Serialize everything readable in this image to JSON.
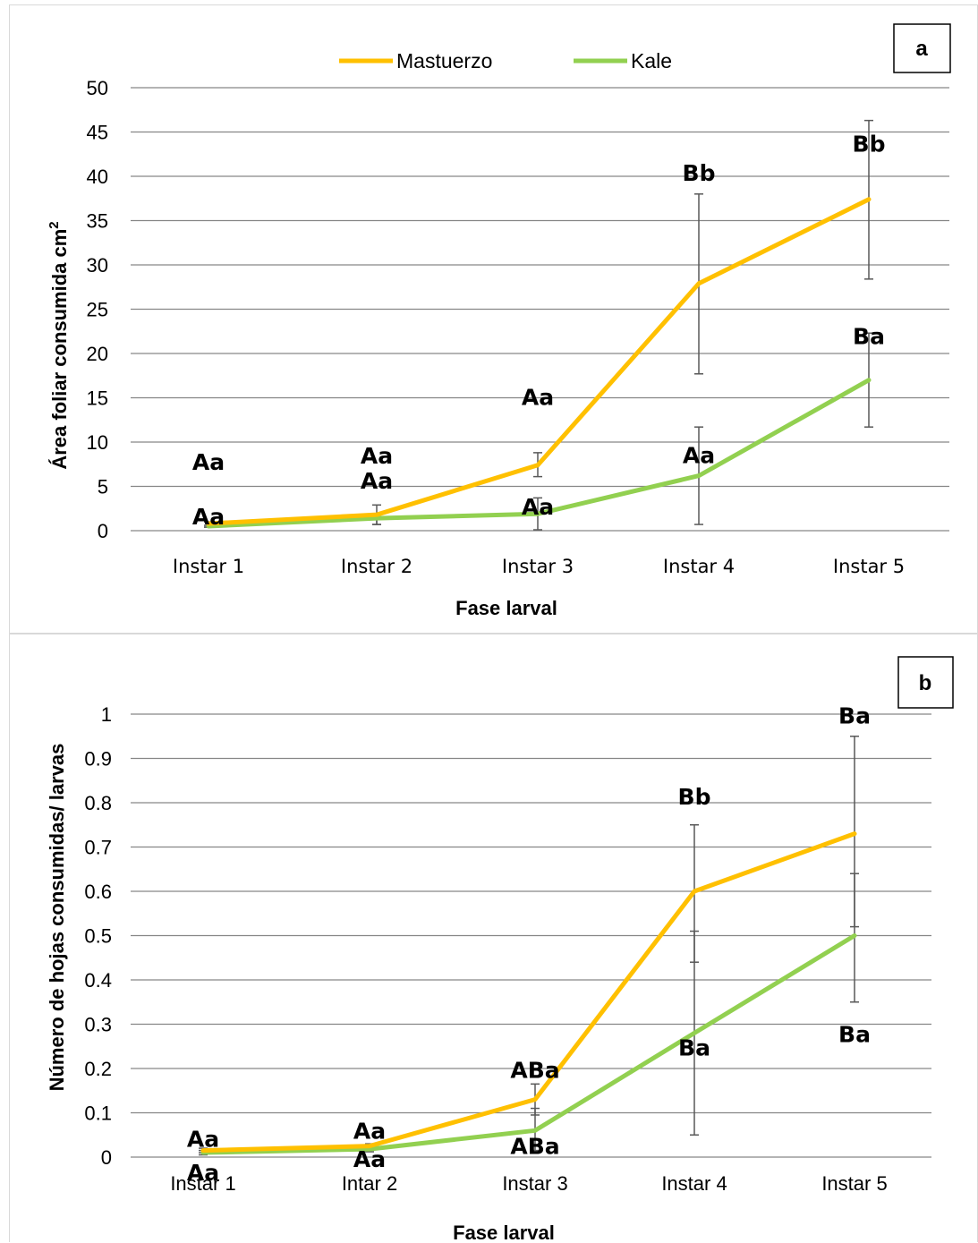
{
  "colors": {
    "mastuerzo": "#FFC000",
    "kale": "#92D050",
    "grid": "#868686",
    "errorbar": "#595959"
  },
  "chart_data": [
    {
      "type": "line",
      "panel_label": "a",
      "categories": [
        "Instar 1",
        "Instar 2",
        "Instar 3",
        "Instar 4",
        "Instar 5"
      ],
      "xlabel": "Fase larval",
      "ylabel": "Área foliar consumida cm",
      "ylabel_sup": "2",
      "ylim": [
        0,
        50
      ],
      "yticks": [
        "0",
        "5",
        "10",
        "15",
        "20",
        "25",
        "30",
        "35",
        "40",
        "45",
        "50"
      ],
      "grid": true,
      "legend": "top-center",
      "series": [
        {
          "name": "Mastuerzo",
          "values": [
            0.8,
            1.8,
            7.4,
            27.9,
            37.4
          ],
          "err_low": [
            0.4,
            0.7,
            6.1,
            17.7,
            28.4
          ],
          "err_high": [
            1.0,
            2.9,
            8.8,
            38.0,
            46.3
          ],
          "labels": [
            "Aa",
            "Aa",
            "Aa",
            "Bb",
            "Bb"
          ]
        },
        {
          "name": "Kale",
          "values": [
            0.5,
            1.4,
            1.9,
            6.2,
            17.0
          ],
          "err_low": [
            0.4,
            0.7,
            0.1,
            0.7,
            11.7
          ],
          "err_high": [
            0.6,
            1.9,
            3.7,
            11.7,
            22.3
          ],
          "labels": [
            "Aa",
            "Aa",
            "Aa",
            "Aa",
            "Ba"
          ]
        }
      ]
    },
    {
      "type": "line",
      "panel_label": "b",
      "categories": [
        "Instar 1",
        "Intar 2",
        "Instar 3",
        "Instar 4",
        "Instar 5"
      ],
      "xlabel": "Fase larval",
      "ylabel": "Número de hojas consumidas/ larvas",
      "ylim": [
        0,
        1
      ],
      "yticks": [
        "0",
        "0.1",
        "0.2",
        "0.3",
        "0.4",
        "0.5",
        "0.6",
        "0.7",
        "0.8",
        "0.9",
        "1"
      ],
      "grid": true,
      "series": [
        {
          "name": "Mastuerzo",
          "values": [
            0.015,
            0.025,
            0.13,
            0.6,
            0.73
          ],
          "err_low": [
            0.01,
            0.02,
            0.095,
            0.44,
            0.52
          ],
          "err_high": [
            0.02,
            0.03,
            0.165,
            0.75,
            0.95
          ],
          "labels": [
            "Aa",
            "Aa",
            "ABa",
            "Bb",
            "Ba"
          ]
        },
        {
          "name": "Kale",
          "values": [
            0.01,
            0.018,
            0.06,
            0.28,
            0.5
          ],
          "err_low": [
            0.005,
            0.012,
            0.015,
            0.05,
            0.35
          ],
          "err_high": [
            0.015,
            0.025,
            0.11,
            0.51,
            0.64
          ],
          "labels": [
            "Aa",
            "Aa",
            "ABa",
            "Ba",
            "Ba"
          ]
        }
      ]
    }
  ]
}
